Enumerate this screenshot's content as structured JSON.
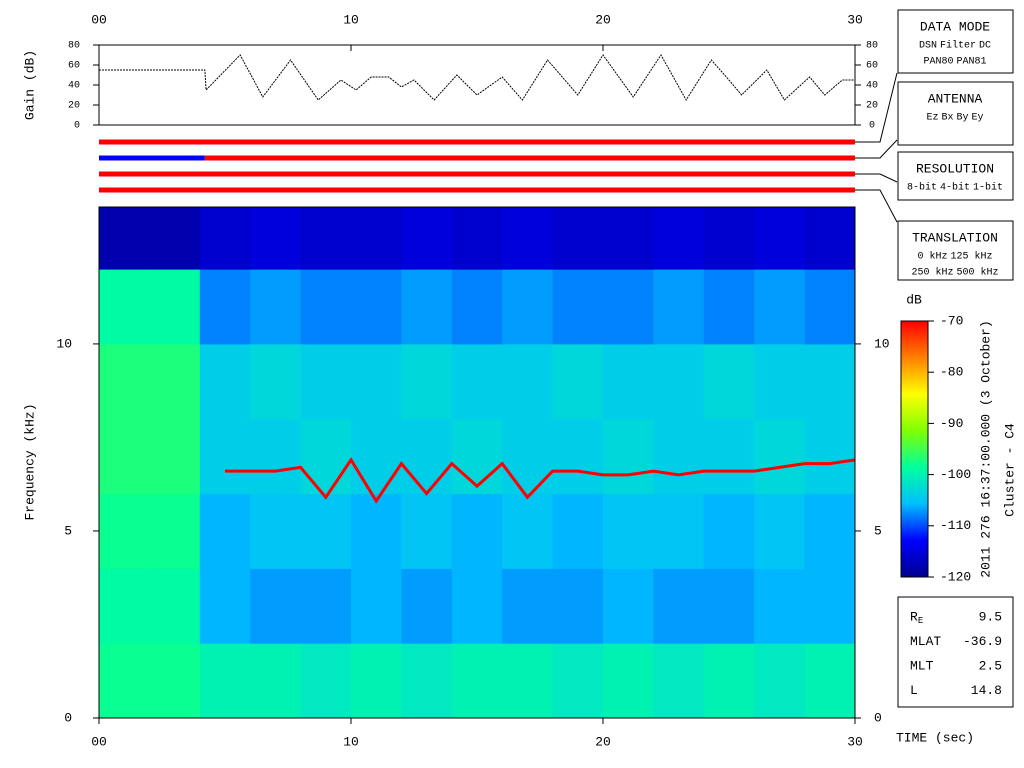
{
  "chart_data": [
    {
      "type": "line",
      "ylabel": "Gain (dB)",
      "color": "#000000",
      "x": [
        0,
        4.2,
        4.25,
        5.6,
        6.5,
        7.6,
        8.7,
        9.6,
        10.2,
        10.8,
        11.5,
        12,
        12.5,
        13.3,
        14.2,
        15,
        16,
        16.8,
        17.8,
        19,
        20,
        21.2,
        22.3,
        23.3,
        24.3,
        25,
        25.5,
        26.5,
        27.2,
        28.2,
        28.8,
        29.5,
        30
      ],
      "values": [
        55,
        55,
        35,
        70,
        28,
        65,
        25,
        45,
        35,
        48,
        48,
        38,
        45,
        25,
        50,
        30,
        48,
        25,
        65,
        30,
        70,
        28,
        70,
        25,
        65,
        45,
        30,
        55,
        25,
        48,
        30,
        45,
        45
      ],
      "xlim": [
        0,
        30
      ],
      "xticks": [
        {
          "value": 0,
          "label": "00"
        },
        10,
        20,
        30
      ],
      "ylim": [
        0,
        80
      ],
      "yticks": [
        0,
        20,
        40,
        60,
        80
      ]
    },
    {
      "type": "status",
      "xlim": [
        0,
        30
      ],
      "series": [
        {
          "segments": [
            {
              "start": 0,
              "end": 30,
              "color": "#ff0000"
            }
          ]
        },
        {
          "segments": [
            {
              "start": 0,
              "end": 4.2,
              "color": "#0000ff"
            },
            {
              "start": 4.2,
              "end": 30,
              "color": "#ff0000"
            }
          ]
        },
        {
          "segments": [
            {
              "start": 0,
              "end": 30,
              "color": "#ff0000"
            }
          ]
        },
        {
          "segments": [
            {
              "start": 0,
              "end": 30,
              "color": "#ff0000"
            }
          ]
        }
      ]
    },
    {
      "type": "heatmap",
      "ylabel": "Frequency (kHz)",
      "xlabel": "TIME (sec)",
      "xlim": [
        0,
        30
      ],
      "xticks": [
        {
          "value": 0,
          "label": "00"
        },
        10,
        20,
        30
      ],
      "ylim": [
        0,
        13.66
      ],
      "yticks": [
        0,
        5,
        10
      ],
      "x_edges": [
        0,
        2,
        4,
        6,
        8,
        10,
        12,
        14,
        16,
        18,
        20,
        22,
        24,
        26,
        28,
        30
      ],
      "y_edges": [
        0,
        2,
        4,
        6,
        8,
        10,
        12,
        13.66
      ],
      "z": [
        [
          -98,
          -98,
          -100,
          -100,
          -101,
          -100,
          -101,
          -100,
          -100,
          -101,
          -100,
          -101,
          -100,
          -101,
          -100
        ],
        [
          -99,
          -99,
          -106,
          -107,
          -107,
          -106,
          -107,
          -106,
          -107,
          -107,
          -106,
          -107,
          -107,
          -106,
          -106
        ],
        [
          -98,
          -98,
          -106,
          -105,
          -105,
          -106,
          -105,
          -106,
          -105,
          -106,
          -105,
          -105,
          -106,
          -105,
          -106
        ],
        [
          -97,
          -97,
          -104,
          -104,
          -103,
          -104,
          -104,
          -103,
          -104,
          -104,
          -103,
          -104,
          -104,
          -103,
          -104
        ],
        [
          -97,
          -97,
          -104,
          -103,
          -104,
          -104,
          -103,
          -104,
          -104,
          -103,
          -104,
          -104,
          -103,
          -104,
          -104
        ],
        [
          -99,
          -99,
          -108,
          -107,
          -108,
          -108,
          -107,
          -108,
          -107,
          -108,
          -108,
          -107,
          -108,
          -107,
          -108
        ],
        [
          -118,
          -118,
          -116,
          -115,
          -116,
          -116,
          -115,
          -116,
          -115,
          -116,
          -116,
          -115,
          -116,
          -115,
          -116
        ]
      ],
      "zlim": [
        -120,
        -70
      ],
      "zticks": [
        -120,
        -110,
        -100,
        -90,
        -80,
        -70
      ],
      "colorbar_label": "dB",
      "colormap": [
        "#00008f",
        "#0000ff",
        "#00bfff",
        "#00ff9f",
        "#7fff00",
        "#ffff00",
        "#ff8000",
        "#ff0000"
      ],
      "trace": {
        "color": "#ff0000",
        "x": [
          5,
          6,
          7,
          8,
          9,
          10,
          11,
          12,
          13,
          14,
          15,
          16,
          17,
          18,
          19,
          20,
          21,
          22,
          23,
          24,
          25,
          26,
          27,
          28,
          29,
          30
        ],
        "values": [
          6.6,
          6.6,
          6.6,
          6.7,
          5.9,
          6.9,
          5.8,
          6.8,
          6.0,
          6.8,
          6.2,
          6.8,
          5.9,
          6.6,
          6.6,
          6.5,
          6.5,
          6.6,
          6.5,
          6.6,
          6.6,
          6.6,
          6.7,
          6.8,
          6.8,
          6.9
        ]
      }
    }
  ],
  "legend_boxes": [
    {
      "title": "DATA MODE",
      "rows": [
        [
          {
            "text": "DSN",
            "color": "#ff0000"
          },
          {
            "text": "Filter",
            "color": "#00cc00"
          },
          {
            "text": "DC",
            "color": "#0000ff"
          }
        ],
        [
          {
            "text": "PAN80",
            "color": "#000000"
          },
          {
            "text": "PAN81",
            "color": "#00cccc"
          }
        ]
      ]
    },
    {
      "title": "ANTENNA",
      "rows": [
        [
          {
            "text": "Ez",
            "color": "#ff0000"
          },
          {
            "text": "Bx",
            "color": "#00cc00"
          },
          {
            "text": "By",
            "color": "#0000ff"
          },
          {
            "text": "Ey",
            "color": "#000000"
          }
        ]
      ]
    },
    {
      "title": "RESOLUTION",
      "rows": [
        [
          {
            "text": "8-bit",
            "color": "#ff0000"
          },
          {
            "text": "4-bit",
            "color": "#00cc00"
          },
          {
            "text": "1-bit",
            "color": "#0000ff"
          }
        ]
      ]
    },
    {
      "title": "TRANSLATION",
      "rows": [
        [
          {
            "text": "0 kHz",
            "color": "#ff0000"
          },
          {
            "text": "125 kHz",
            "color": "#00cc00"
          }
        ],
        [
          {
            "text": "250 kHz",
            "color": "#0000ff"
          },
          {
            "text": "500 kHz",
            "color": "#000000"
          }
        ]
      ]
    }
  ],
  "side_text": [
    "2011 276 16:37:00.000 (3 October)",
    "Cluster - C4"
  ],
  "ephemeris": [
    {
      "label": "R",
      "sub": "E",
      "value": 9.5
    },
    {
      "label": "MLAT",
      "value": -36.9
    },
    {
      "label": "MLT",
      "value": 2.5
    },
    {
      "label": "L",
      "value": 14.8
    }
  ]
}
